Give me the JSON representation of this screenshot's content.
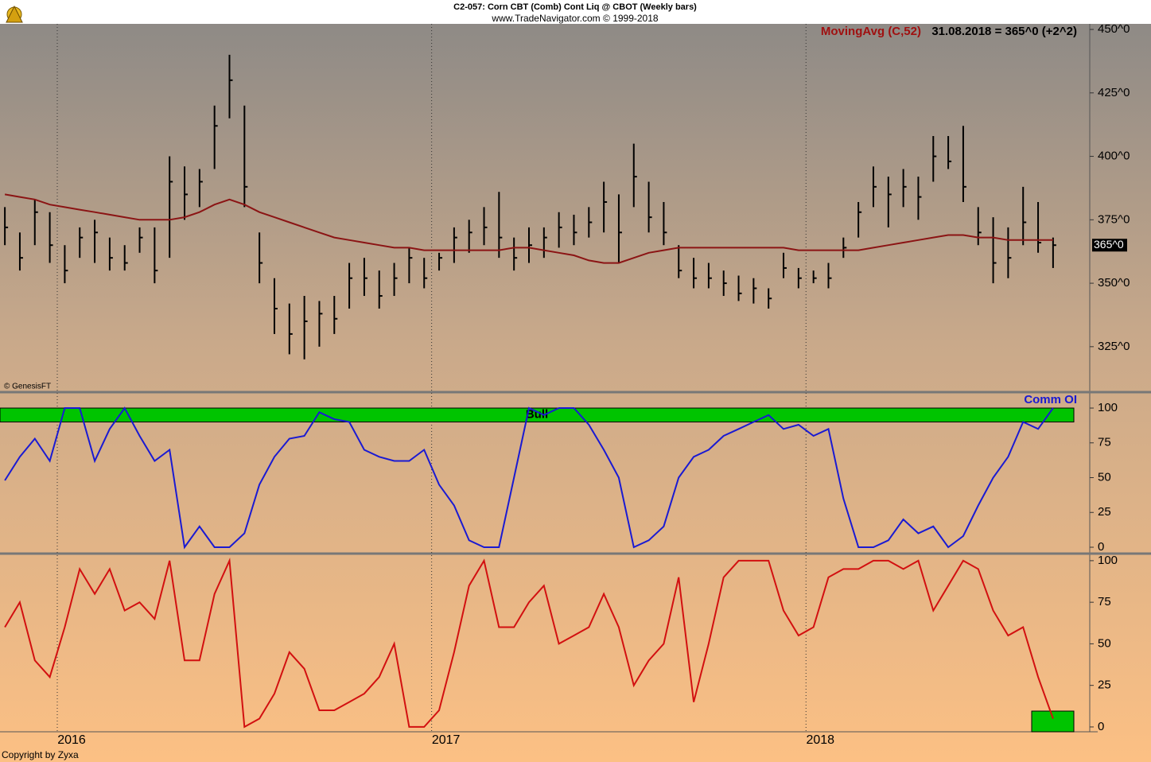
{
  "chart_data": [
    {
      "type": "ohlc",
      "title": "C2-057:  Corn CBT (Comb) Cont Liq @ CBOT  (Weekly bars)",
      "subtitle": "www.TradeNavigator.com © 1999-2018",
      "legend_value": "31.08.2018 = 365^0 (+2^2)",
      "price_label": "365^0",
      "source": "© GenesisFT",
      "bar_color": "#000000",
      "xlim": [
        2015.847,
        2018.758
      ],
      "xticks": [
        2016,
        2017,
        2018
      ],
      "ylim": [
        307.4,
        452.2
      ],
      "yticks": [
        {
          "value": 325,
          "label": "325^0"
        },
        {
          "value": 350,
          "label": "350^0"
        },
        {
          "value": 375,
          "label": "375^0"
        },
        {
          "value": 400,
          "label": "400^0"
        },
        {
          "value": 425,
          "label": "425^0"
        },
        {
          "value": 450,
          "label": "450^0"
        }
      ],
      "x": [
        2015.86,
        2015.9,
        2015.94,
        2015.98,
        2016.02,
        2016.06,
        2016.1,
        2016.14,
        2016.18,
        2016.22,
        2016.26,
        2016.3,
        2016.34,
        2016.38,
        2016.42,
        2016.46,
        2016.5,
        2016.54,
        2016.58,
        2016.62,
        2016.66,
        2016.7,
        2016.74,
        2016.78,
        2016.82,
        2016.86,
        2016.9,
        2016.94,
        2016.98,
        2017.02,
        2017.06,
        2017.1,
        2017.14,
        2017.18,
        2017.22,
        2017.26,
        2017.3,
        2017.34,
        2017.38,
        2017.42,
        2017.46,
        2017.5,
        2017.54,
        2017.58,
        2017.62,
        2017.66,
        2017.7,
        2017.74,
        2017.78,
        2017.82,
        2017.86,
        2017.9,
        2017.94,
        2017.98,
        2018.02,
        2018.06,
        2018.1,
        2018.14,
        2018.18,
        2018.22,
        2018.26,
        2018.3,
        2018.34,
        2018.38,
        2018.42,
        2018.46,
        2018.5,
        2018.54,
        2018.58,
        2018.62,
        2018.66
      ],
      "high": [
        380,
        370,
        383,
        378,
        365,
        372,
        375,
        368,
        365,
        372,
        372,
        400,
        396,
        395,
        420,
        440,
        420,
        370,
        352,
        342,
        345,
        343,
        345,
        358,
        360,
        355,
        358,
        364,
        360,
        362,
        372,
        375,
        380,
        386,
        368,
        372,
        372,
        378,
        377,
        380,
        390,
        385,
        405,
        390,
        382,
        365,
        360,
        358,
        355,
        353,
        352,
        348,
        362,
        356,
        355,
        358,
        368,
        382,
        396,
        392,
        395,
        392,
        408,
        408,
        412,
        380,
        376,
        372,
        388,
        382,
        368
      ],
      "low": [
        365,
        355,
        365,
        358,
        350,
        360,
        358,
        355,
        355,
        362,
        350,
        360,
        375,
        380,
        395,
        415,
        380,
        350,
        330,
        322,
        320,
        325,
        330,
        340,
        345,
        340,
        345,
        350,
        348,
        355,
        358,
        362,
        365,
        360,
        355,
        358,
        360,
        364,
        365,
        368,
        370,
        358,
        380,
        370,
        365,
        352,
        348,
        348,
        345,
        343,
        342,
        340,
        352,
        348,
        350,
        348,
        360,
        368,
        380,
        372,
        380,
        375,
        390,
        395,
        382,
        365,
        350,
        352,
        365,
        362,
        356
      ],
      "close": [
        372,
        360,
        378,
        365,
        355,
        368,
        370,
        360,
        358,
        368,
        355,
        390,
        385,
        390,
        412,
        430,
        388,
        358,
        340,
        330,
        335,
        338,
        336,
        352,
        352,
        345,
        352,
        360,
        352,
        360,
        368,
        370,
        372,
        368,
        360,
        365,
        368,
        372,
        370,
        374,
        382,
        370,
        392,
        376,
        370,
        355,
        352,
        352,
        350,
        346,
        348,
        344,
        356,
        352,
        352,
        352,
        364,
        378,
        388,
        385,
        388,
        384,
        400,
        398,
        388,
        370,
        358,
        360,
        374,
        366,
        365
      ],
      "series": [
        {
          "name": "MovingAvg (C,52)",
          "color": "#8b1414",
          "values": [
            385,
            384,
            383,
            381,
            380,
            379,
            378,
            377,
            376,
            375,
            375,
            375,
            376,
            378,
            381,
            383,
            381,
            378,
            376,
            374,
            372,
            370,
            368,
            367,
            366,
            365,
            364,
            364,
            363,
            363,
            363,
            363,
            363,
            363,
            364,
            364,
            363,
            362,
            361,
            359,
            358,
            358,
            360,
            362,
            363,
            364,
            364,
            364,
            364,
            364,
            364,
            364,
            364,
            363,
            363,
            363,
            363,
            363,
            364,
            365,
            366,
            367,
            368,
            369,
            369,
            368,
            368,
            367,
            367,
            367,
            367
          ]
        }
      ]
    },
    {
      "type": "line",
      "ylim": [
        -4,
        110.3
      ],
      "yticks": [
        0,
        25,
        50,
        75,
        100
      ],
      "zone": {
        "label": "Bull",
        "from": 90,
        "to": 100,
        "color": "#00c400"
      },
      "series": [
        {
          "name": "Comm OI",
          "color": "#1a1ad2",
          "values": [
            48,
            65,
            78,
            62,
            100,
            100,
            62,
            85,
            100,
            80,
            62,
            70,
            0,
            15,
            0,
            0,
            10,
            45,
            65,
            78,
            80,
            97,
            92,
            90,
            70,
            65,
            62,
            62,
            70,
            45,
            30,
            5,
            0,
            0,
            50,
            100,
            95,
            100,
            100,
            88,
            70,
            50,
            0,
            5,
            15,
            50,
            65,
            70,
            80,
            85,
            90,
            95,
            85,
            88,
            80,
            85,
            35,
            0,
            0,
            5,
            20,
            10,
            15,
            0,
            8,
            30,
            50,
            65,
            90,
            85,
            100
          ]
        }
      ]
    },
    {
      "type": "line",
      "ylim": [
        -2.9,
        103.3
      ],
      "yticks": [
        0,
        25,
        50,
        75,
        100
      ],
      "series": [
        {
          "color": "#d21010",
          "values": [
            60,
            75,
            40,
            30,
            60,
            95,
            80,
            95,
            70,
            75,
            65,
            100,
            40,
            40,
            80,
            100,
            0,
            5,
            20,
            45,
            35,
            10,
            10,
            15,
            20,
            30,
            50,
            0,
            0,
            10,
            45,
            85,
            100,
            60,
            60,
            75,
            85,
            50,
            55,
            60,
            80,
            60,
            25,
            40,
            50,
            90,
            15,
            50,
            90,
            100,
            100,
            100,
            70,
            55,
            60,
            90,
            95,
            95,
            100,
            100,
            95,
            100,
            70,
            85,
            100,
            95,
            70,
            55,
            60,
            30,
            5
          ]
        }
      ]
    }
  ],
  "copyright": "Copyright by Zyxa"
}
